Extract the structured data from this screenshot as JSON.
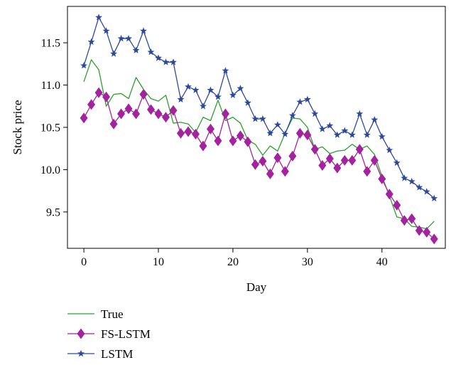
{
  "chart_data": {
    "type": "line",
    "title": "",
    "xlabel": "Day",
    "ylabel": "Stock price",
    "xlim": [
      -2.2,
      48.5
    ],
    "ylim": [
      9.07,
      11.93
    ],
    "xticks": [
      0,
      10,
      20,
      30,
      40
    ],
    "xtick_labels": [
      "0",
      "10",
      "20",
      "30",
      "40"
    ],
    "yticks": [
      9.5,
      10.0,
      10.5,
      11.0,
      11.5
    ],
    "ytick_labels": [
      "9.5",
      "10.0",
      "10.5",
      "11.0",
      "11.5"
    ],
    "grid": false,
    "legend_position": "bottom-left, below plot",
    "x": [
      0,
      1,
      2,
      3,
      4,
      5,
      6,
      7,
      8,
      9,
      10,
      11,
      12,
      13,
      14,
      15,
      16,
      17,
      18,
      19,
      20,
      21,
      22,
      23,
      24,
      25,
      26,
      27,
      28,
      29,
      30,
      31,
      32,
      33,
      34,
      35,
      36,
      37,
      38,
      39,
      40,
      41,
      42,
      43,
      44,
      45,
      46,
      47
    ],
    "series": [
      {
        "name": "True",
        "color": "#2ca02c",
        "marker": "none",
        "values": [
          11.04,
          11.3,
          11.18,
          10.75,
          10.89,
          10.9,
          10.84,
          11.09,
          10.95,
          10.84,
          10.81,
          10.88,
          10.55,
          10.56,
          10.54,
          10.44,
          10.62,
          10.58,
          10.82,
          10.58,
          10.62,
          10.55,
          10.35,
          10.3,
          10.17,
          10.28,
          10.22,
          10.43,
          10.61,
          10.6,
          10.5,
          10.24,
          10.27,
          10.19,
          10.22,
          10.23,
          10.3,
          10.24,
          10.28,
          10.18,
          9.92,
          9.69,
          9.44,
          9.42,
          9.33,
          9.32,
          9.3,
          9.39
        ]
      },
      {
        "name": "FS-LSTM",
        "color": "#a3229d",
        "marker": "diamond",
        "values": [
          10.61,
          10.77,
          10.91,
          10.86,
          10.54,
          10.66,
          10.72,
          10.66,
          10.89,
          10.71,
          10.66,
          10.62,
          10.7,
          10.43,
          10.45,
          10.42,
          10.28,
          10.48,
          10.34,
          10.66,
          10.34,
          10.4,
          10.33,
          10.06,
          10.1,
          9.95,
          10.14,
          9.98,
          10.16,
          10.43,
          10.41,
          10.24,
          10.05,
          10.13,
          10.02,
          10.11,
          10.11,
          10.24,
          9.98,
          10.11,
          9.89,
          9.71,
          9.58,
          9.4,
          9.42,
          9.28,
          9.26,
          9.18
        ]
      },
      {
        "name": "LSTM",
        "color": "#2b4a9b",
        "marker": "star",
        "values": [
          11.23,
          11.51,
          11.8,
          11.64,
          11.37,
          11.55,
          11.55,
          11.41,
          11.64,
          11.39,
          11.32,
          11.27,
          11.27,
          10.83,
          10.98,
          10.94,
          10.75,
          10.94,
          10.86,
          11.17,
          10.88,
          10.96,
          10.79,
          10.6,
          10.6,
          10.43,
          10.53,
          10.42,
          10.64,
          10.8,
          10.83,
          10.66,
          10.48,
          10.52,
          10.41,
          10.46,
          10.41,
          10.66,
          10.41,
          10.59,
          10.39,
          10.23,
          10.08,
          9.9,
          9.86,
          9.79,
          9.74,
          9.66
        ]
      }
    ]
  }
}
